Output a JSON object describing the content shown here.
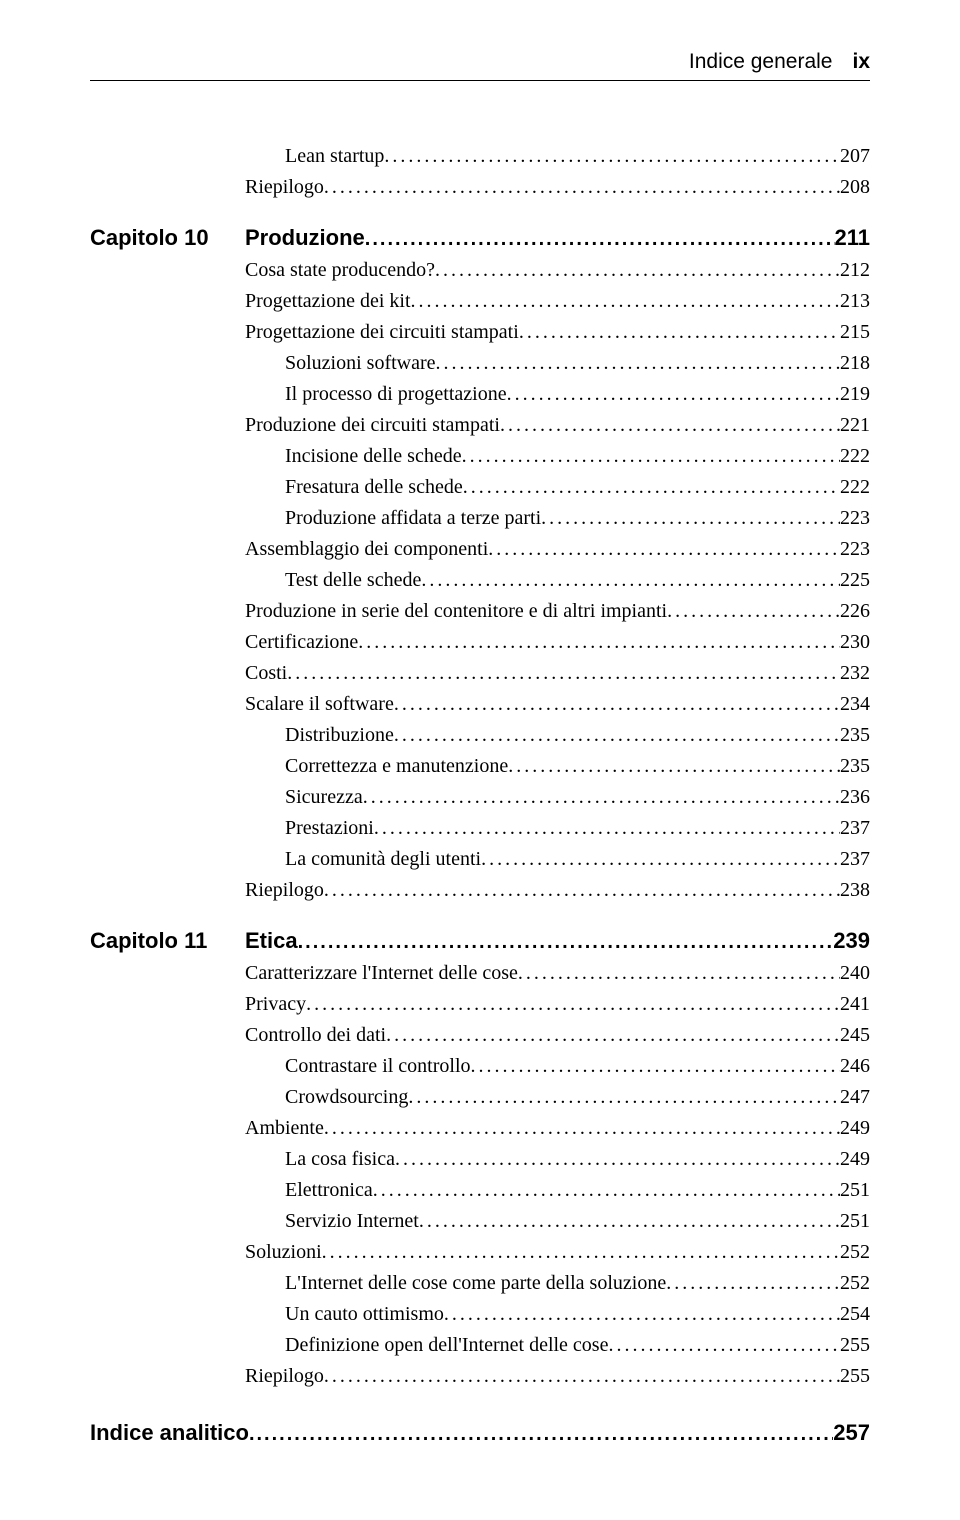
{
  "header": {
    "title": "Indice generale",
    "page": "ix"
  },
  "entries": [
    {
      "text": "Lean startup",
      "page": "207",
      "indent": 1,
      "bold": false,
      "chapter": ""
    },
    {
      "text": "Riepilogo",
      "page": "208",
      "indent": 0,
      "bold": false,
      "chapter": ""
    },
    {
      "text": "Produzione",
      "page": "211",
      "indent": 0,
      "bold": true,
      "chapter": "Capitolo 10",
      "isChapter": true
    },
    {
      "text": "Cosa state producendo?",
      "page": "212",
      "indent": 0,
      "bold": false,
      "chapter": ""
    },
    {
      "text": "Progettazione dei kit",
      "page": "213",
      "indent": 0,
      "bold": false,
      "chapter": ""
    },
    {
      "text": "Progettazione dei circuiti stampati",
      "page": "215",
      "indent": 0,
      "bold": false,
      "chapter": ""
    },
    {
      "text": "Soluzioni software",
      "page": "218",
      "indent": 1,
      "bold": false,
      "chapter": ""
    },
    {
      "text": "Il processo di progettazione",
      "page": "219",
      "indent": 1,
      "bold": false,
      "chapter": ""
    },
    {
      "text": "Produzione dei circuiti stampati",
      "page": "221",
      "indent": 0,
      "bold": false,
      "chapter": ""
    },
    {
      "text": "Incisione delle schede",
      "page": "222",
      "indent": 1,
      "bold": false,
      "chapter": ""
    },
    {
      "text": "Fresatura delle schede",
      "page": "222",
      "indent": 1,
      "bold": false,
      "chapter": ""
    },
    {
      "text": "Produzione affidata a terze parti",
      "page": "223",
      "indent": 1,
      "bold": false,
      "chapter": ""
    },
    {
      "text": "Assemblaggio dei componenti",
      "page": "223",
      "indent": 0,
      "bold": false,
      "chapter": ""
    },
    {
      "text": "Test delle schede",
      "page": "225",
      "indent": 1,
      "bold": false,
      "chapter": ""
    },
    {
      "text": "Produzione in serie del contenitore e di altri impianti",
      "page": "226",
      "indent": 0,
      "bold": false,
      "chapter": ""
    },
    {
      "text": "Certificazione",
      "page": "230",
      "indent": 0,
      "bold": false,
      "chapter": ""
    },
    {
      "text": "Costi",
      "page": "232",
      "indent": 0,
      "bold": false,
      "chapter": ""
    },
    {
      "text": "Scalare il software",
      "page": "234",
      "indent": 0,
      "bold": false,
      "chapter": ""
    },
    {
      "text": "Distribuzione",
      "page": "235",
      "indent": 1,
      "bold": false,
      "chapter": ""
    },
    {
      "text": "Correttezza e manutenzione",
      "page": "235",
      "indent": 1,
      "bold": false,
      "chapter": ""
    },
    {
      "text": "Sicurezza",
      "page": "236",
      "indent": 1,
      "bold": false,
      "chapter": ""
    },
    {
      "text": "Prestazioni",
      "page": "237",
      "indent": 1,
      "bold": false,
      "chapter": ""
    },
    {
      "text": "La comunità degli utenti",
      "page": "237",
      "indent": 1,
      "bold": false,
      "chapter": ""
    },
    {
      "text": "Riepilogo",
      "page": "238",
      "indent": 0,
      "bold": false,
      "chapter": ""
    },
    {
      "text": "Etica",
      "page": "239",
      "indent": 0,
      "bold": true,
      "chapter": "Capitolo 11",
      "isChapter": true
    },
    {
      "text": "Caratterizzare l'Internet delle cose",
      "page": "240",
      "indent": 0,
      "bold": false,
      "chapter": ""
    },
    {
      "text": "Privacy",
      "page": "241",
      "indent": 0,
      "bold": false,
      "chapter": ""
    },
    {
      "text": "Controllo dei dati",
      "page": "245",
      "indent": 0,
      "bold": false,
      "chapter": ""
    },
    {
      "text": "Contrastare il controllo",
      "page": "246",
      "indent": 1,
      "bold": false,
      "chapter": ""
    },
    {
      "text": "Crowdsourcing",
      "page": "247",
      "indent": 1,
      "bold": false,
      "chapter": ""
    },
    {
      "text": "Ambiente",
      "page": "249",
      "indent": 0,
      "bold": false,
      "chapter": ""
    },
    {
      "text": "La cosa fisica",
      "page": "249",
      "indent": 1,
      "bold": false,
      "chapter": ""
    },
    {
      "text": "Elettronica",
      "page": "251",
      "indent": 1,
      "bold": false,
      "chapter": ""
    },
    {
      "text": "Servizio Internet",
      "page": "251",
      "indent": 1,
      "bold": false,
      "chapter": ""
    },
    {
      "text": "Soluzioni",
      "page": "252",
      "indent": 0,
      "bold": false,
      "chapter": ""
    },
    {
      "text": "L'Internet delle cose come parte della soluzione",
      "page": "252",
      "indent": 1,
      "bold": false,
      "chapter": ""
    },
    {
      "text": "Un cauto ottimismo",
      "page": "254",
      "indent": 1,
      "bold": false,
      "chapter": ""
    },
    {
      "text": "Definizione open dell'Internet delle cose",
      "page": "255",
      "indent": 1,
      "bold": false,
      "chapter": ""
    },
    {
      "text": "Riepilogo",
      "page": "255",
      "indent": 0,
      "bold": false,
      "chapter": ""
    },
    {
      "text": "Indice analitico",
      "page": "257",
      "indent": 0,
      "bold": true,
      "chapter": "",
      "isIndex": true
    }
  ]
}
